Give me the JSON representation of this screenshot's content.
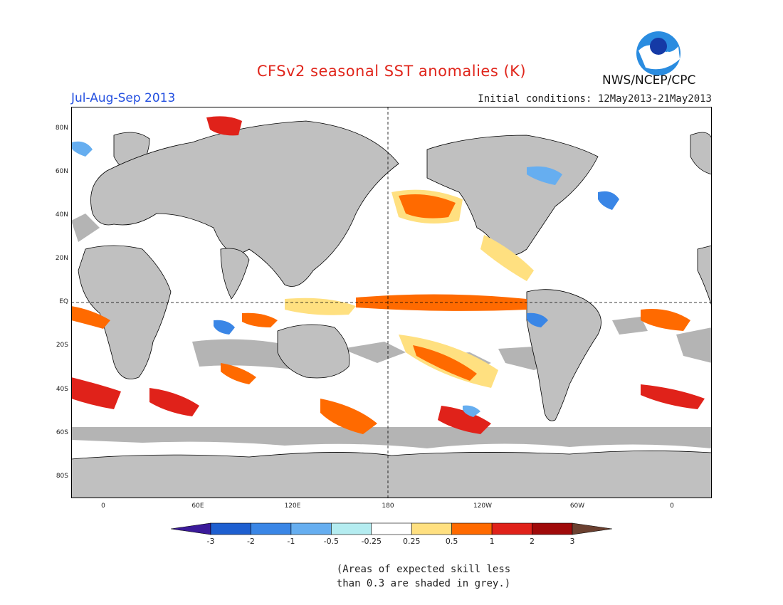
{
  "header": {
    "title": "CFSv2 seasonal SST anomalies (K)",
    "season": "Jul-Aug-Sep 2013",
    "initial_conditions": "Initial conditions: 12May2013-21May2013",
    "org": "NWS/NCEP/CPC",
    "logo_icon": "noaa-logo-icon"
  },
  "map": {
    "lat_labels": [
      "80N",
      "60N",
      "40N",
      "20N",
      "EQ",
      "20S",
      "40S",
      "60S",
      "80S"
    ],
    "lon_labels": [
      "0",
      "60E",
      "120E",
      "180",
      "120W",
      "60W",
      "0"
    ],
    "colors": {
      "land": "#c0c0c0",
      "ocean": "#ffffff",
      "low_skill": "#b4b4b4"
    }
  },
  "colorbar": {
    "labels": [
      "-3",
      "-2",
      "-1",
      "-0.5",
      "-0.25",
      "0.25",
      "0.5",
      "1",
      "2",
      "3"
    ],
    "colors": [
      "#3b1a9a",
      "#1e5fd0",
      "#3a86e6",
      "#66aef0",
      "#b4ecf0",
      "#ffffff",
      "#ffe080",
      "#ff6a00",
      "#e0221a",
      "#a00a0a",
      "#6b4030"
    ]
  },
  "note": {
    "line1": "(Areas of expected skill less",
    "line2": "than 0.3 are shaded in grey.)"
  }
}
